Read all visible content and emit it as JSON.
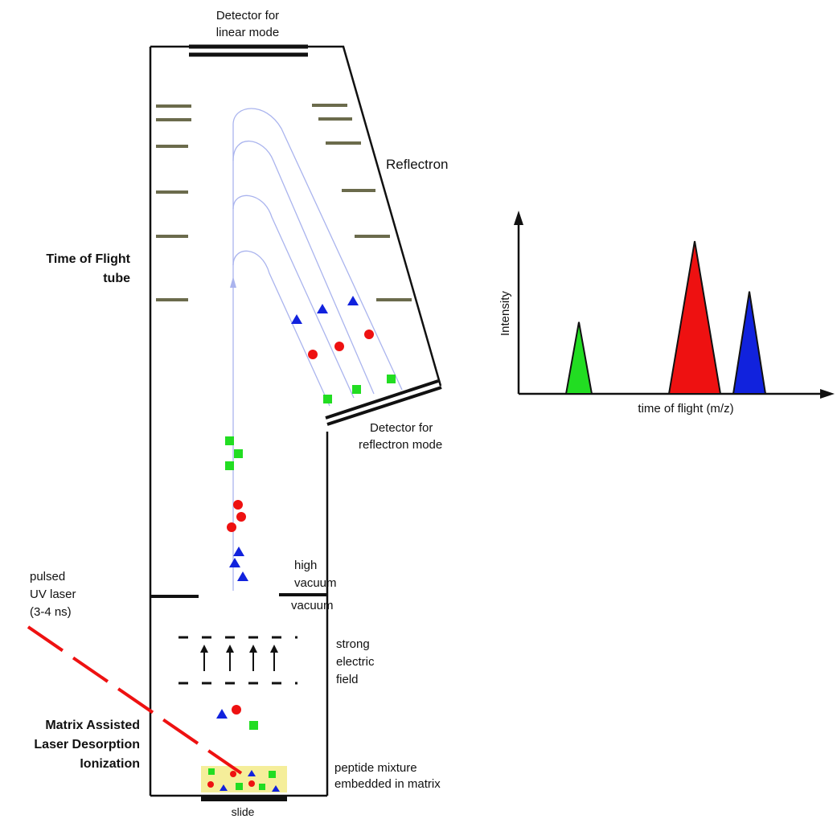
{
  "labels": {
    "detector_linear_line1": "Detector for",
    "detector_linear_line2": "linear mode",
    "reflectron": "Reflectron",
    "tof_line1": "Time of Flight",
    "tof_line2": "tube",
    "detector_reflectron_line1": "Detector for",
    "detector_reflectron_line2": "reflectron mode",
    "high_vacuum_line1": "high",
    "high_vacuum_line2": "vacuum",
    "vacuum": "vacuum",
    "laser_line1": "pulsed",
    "laser_line2": "UV laser",
    "laser_line3": "(3-4 ns)",
    "field_line1": "strong",
    "field_line2": "electric",
    "field_line3": "field",
    "maldi_line1": "Matrix Assisted",
    "maldi_line2": "Laser Desorption",
    "maldi_line3": "Ionization",
    "sample_line1": "peptide mixture",
    "sample_line2": "embedded in matrix",
    "slide": "slide"
  },
  "spectrum": {
    "ylabel": "Intensity",
    "xlabel": "time of flight (m/z)",
    "peaks": [
      {
        "color": "#22dd22",
        "height": 0.47
      },
      {
        "color": "#ee1111",
        "height": 1.0
      },
      {
        "color": "#1122dd",
        "height": 0.67
      }
    ]
  },
  "ion_colors": {
    "square": "#22dd22",
    "circle": "#ee1111",
    "triangle": "#1122dd"
  },
  "matrix_color": "#f5ee9a",
  "laser_color": "#ee1111"
}
